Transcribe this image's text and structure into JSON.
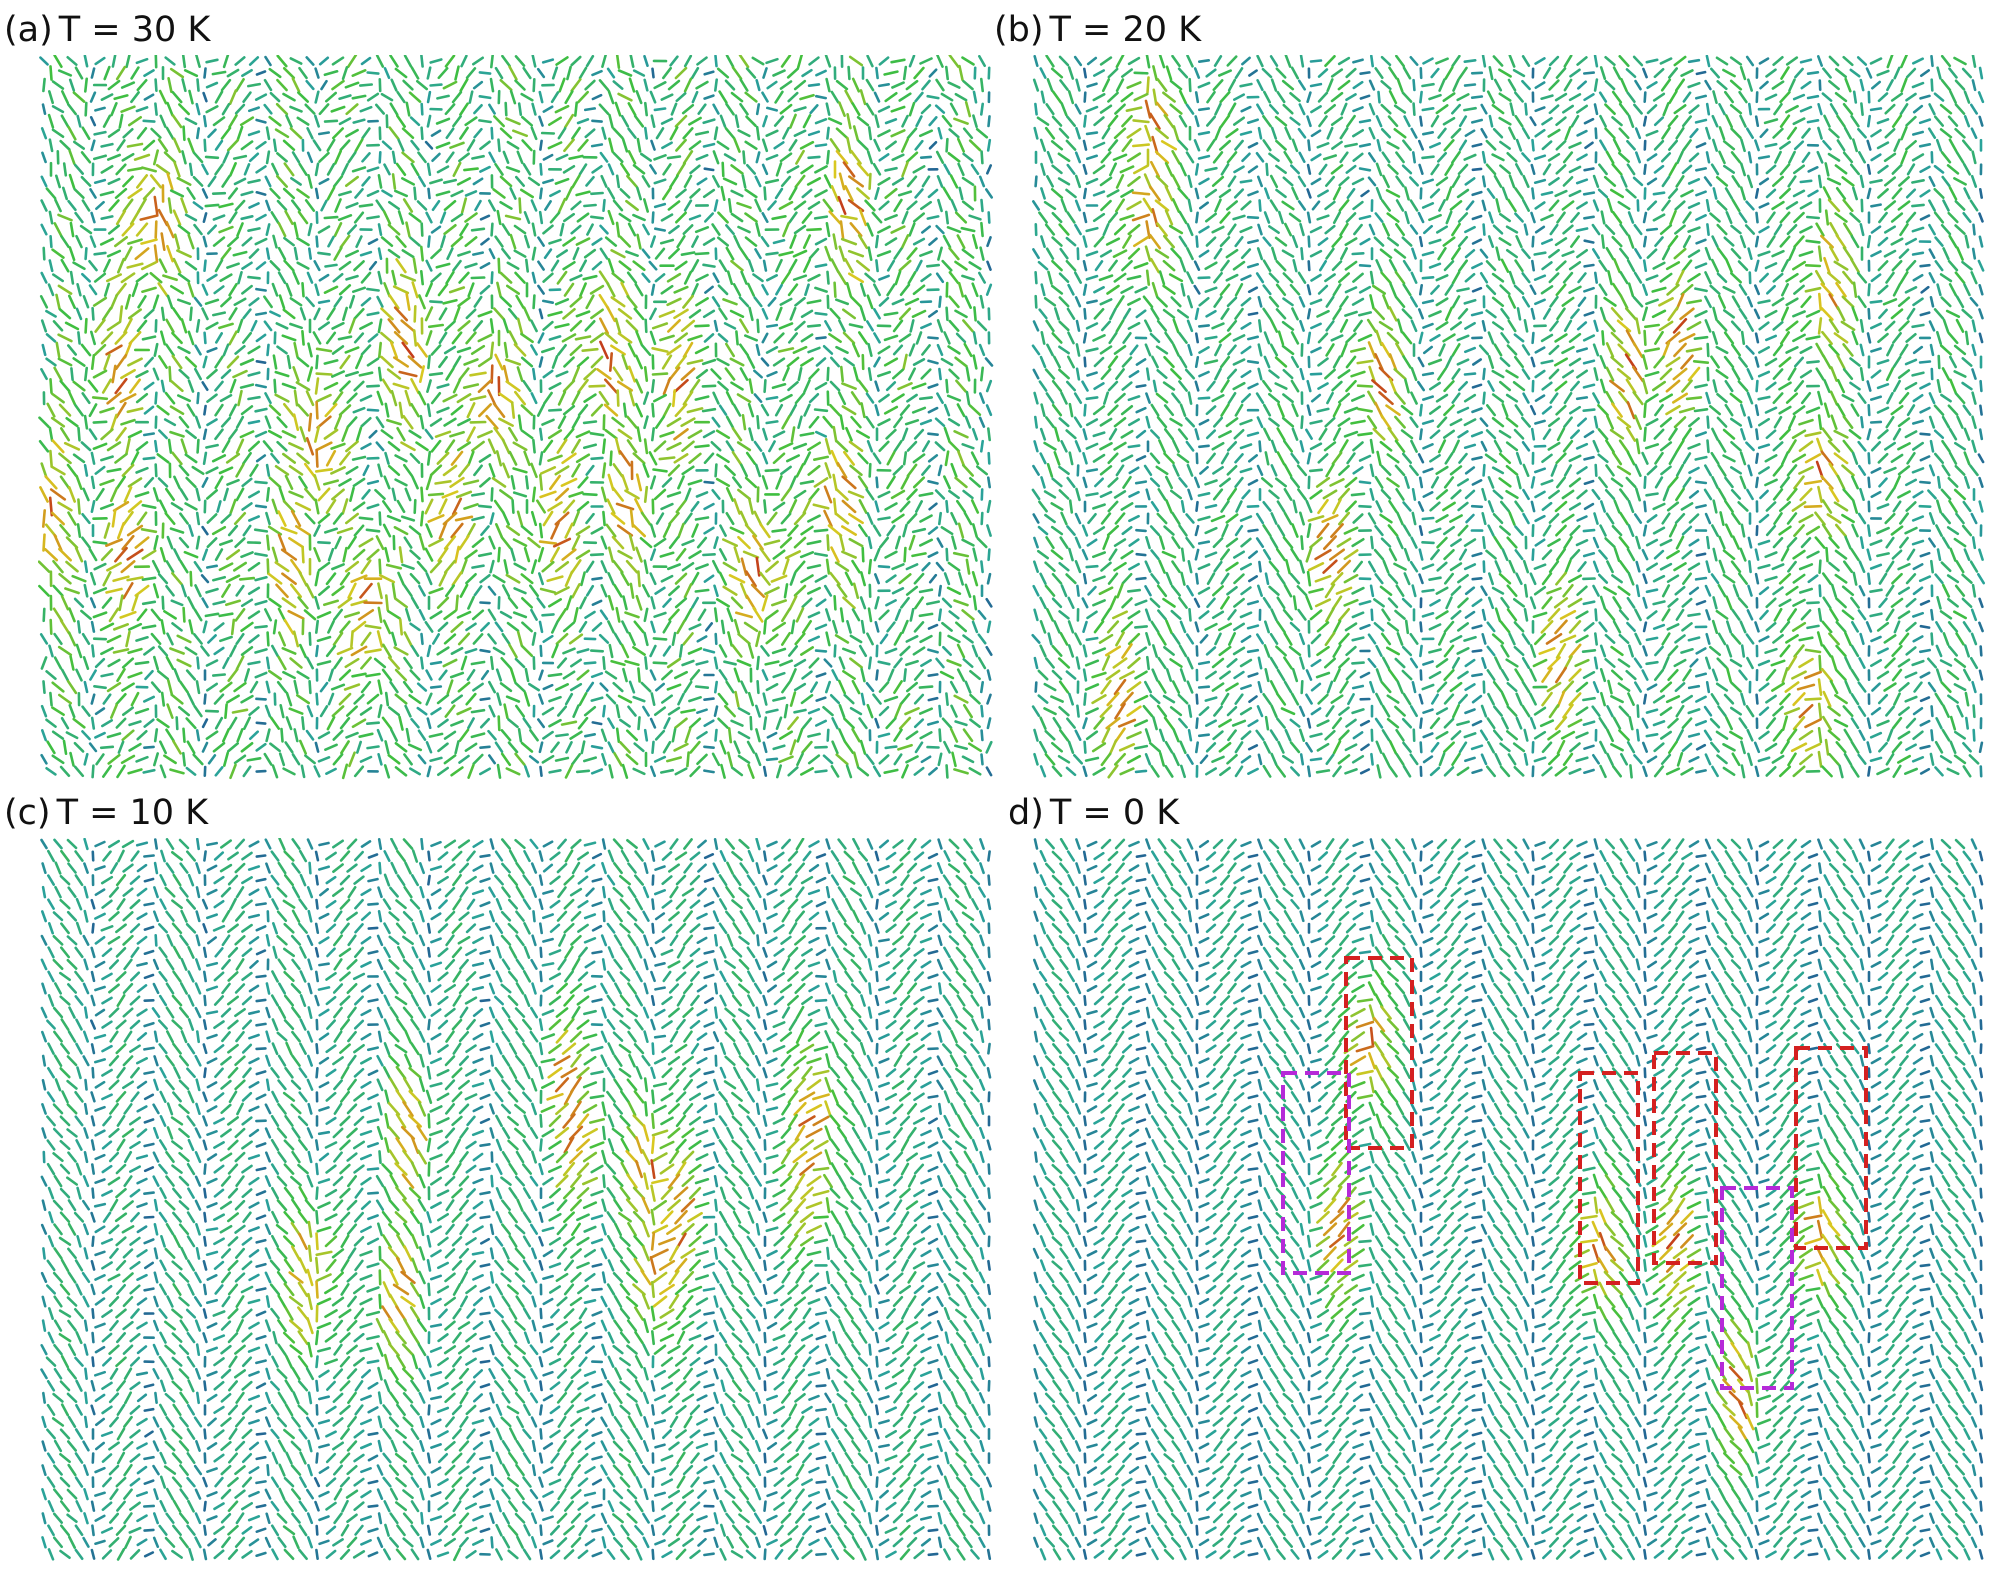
{
  "figure": {
    "panels": [
      {
        "id": "a",
        "label": "(a)",
        "temperature": "T = 30 K",
        "temperature_K": 30
      },
      {
        "id": "b",
        "label": "(b)",
        "temperature": "T = 20 K",
        "temperature_K": 20
      },
      {
        "id": "c",
        "label": "(c)",
        "temperature": "T = 10 K",
        "temperature_K": 10
      },
      {
        "id": "d",
        "label": "d)",
        "temperature": "T = 0 K",
        "temperature_K": 0
      }
    ],
    "colors": {
      "low": "#1a1a8c",
      "mid": "#2aa39a",
      "green": "#3fbf3f",
      "yellow": "#d9c820",
      "high": "#c0281a",
      "highlight_red": "#d42020",
      "highlight_magenta": "#b52ad8"
    },
    "highlight_boxes_d": [
      {
        "color": "red",
        "count": 4
      },
      {
        "color": "magenta",
        "count": 2
      }
    ]
  }
}
